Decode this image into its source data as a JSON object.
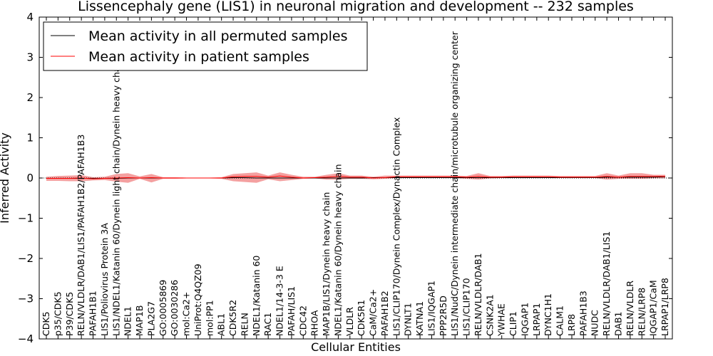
{
  "chart_data": {
    "type": "line",
    "title": "Lissencephaly gene (LIS1) in neuronal migration and development -- 232 samples",
    "xlabel": "Cellular Entities",
    "ylabel": "Inferred Activity",
    "ylim": [
      -4,
      4
    ],
    "yticks": [
      -4,
      -3,
      -2,
      -1,
      0,
      1,
      2,
      3,
      4
    ],
    "ytick_labels": [
      "−4",
      "−3",
      "−2",
      "−1",
      "0",
      "1",
      "2",
      "3",
      "4"
    ],
    "legend_position": "top-left",
    "categories": [
      "CDK5",
      "p35/CDK5",
      "P39/CDK5",
      "RELN/VLDLR/DAB1/LIS1/PAFAH1B2/PAFAH1B3",
      "PAFAH1B1",
      "LIS1/Poliovirus Protein 3A",
      "LIS1/NDEL1/Katanin 60/Dynein light chain/Dynein heavy chain",
      "NDEL1",
      "MAP1B",
      "PLA2G7",
      "GO:0005869",
      "GO:0030286",
      "mol:Ca2+",
      "UniProt:Q4QZ09",
      "mol:PP1",
      "ABL1",
      "CDK5R2",
      "RELN",
      "NDEL1/Katanin 60",
      "RAC1",
      "NDEL1/14-3-3 E",
      "PAFAH/LIS1",
      "CDC42",
      "RHOA",
      "MAP1B/LIS1/Dynein heavy chain",
      "NDEL1/Katanin 60/Dynein heavy chain",
      "VLDLR",
      "CDK5R1",
      "CaM/Ca2+",
      "PAFAH1B2",
      "LIS1/CLIP170/Dynein Complex/Dynactin Complex",
      "DYNLT1",
      "KATNA1",
      "LIS1/IQGAP1",
      "PPP2R5D",
      "LIS1/NudC/Dynein intermediate chain/microtubule organizing center",
      "LIS1/CLIP170",
      "RELN/VLDLR/DAB1",
      "CSNK2A1",
      "YWHAE",
      "CLIP1",
      "IQGAP1",
      "LRPAP1",
      "DYNC1H1",
      "CALM1",
      "LRP8",
      "PAFAH1B3",
      "NUDC",
      "RELN/VLDLR/DAB1/LIS1",
      "DAB1",
      "RELN/VLDLR",
      "RELN/LRP8",
      "IQGAP1/CaM",
      "LRPAP1/LRP8"
    ],
    "series": [
      {
        "name": "Mean activity in all permuted samples",
        "color": "#000000",
        "values": [
          -0.01,
          -0.01,
          -0.01,
          -0.01,
          -0.01,
          -0.01,
          -0.01,
          0.0,
          0.0,
          0.0,
          0.0,
          0.0,
          0.0,
          0.0,
          0.0,
          0.0,
          0.01,
          0.01,
          0.0,
          0.0,
          0.0,
          0.0,
          0.0,
          0.0,
          0.0,
          0.0,
          0.0,
          0.0,
          0.01,
          0.01,
          0.01,
          0.01,
          0.01,
          0.01,
          0.01,
          0.01,
          0.01,
          0.01,
          0.01,
          0.01,
          0.01,
          0.01,
          0.01,
          0.01,
          0.01,
          0.01,
          0.01,
          0.01,
          0.02,
          0.02,
          0.02,
          0.02,
          0.02,
          0.03
        ],
        "band": [
          [
            -0.01,
            -0.01
          ],
          [
            -0.01,
            -0.01
          ],
          [
            -0.01,
            -0.01
          ],
          [
            -0.01,
            -0.01
          ],
          [
            -0.01,
            -0.01
          ],
          [
            -0.01,
            -0.01
          ],
          [
            -0.01,
            -0.01
          ],
          [
            -0.01,
            0.01
          ],
          [
            -0.01,
            0.01
          ],
          [
            -0.01,
            0.01
          ],
          [
            -0.01,
            0.01
          ],
          [
            -0.01,
            0.01
          ],
          [
            -0.01,
            0.01
          ],
          [
            -0.01,
            0.01
          ],
          [
            -0.01,
            0.01
          ],
          [
            -0.01,
            0.01
          ],
          [
            0.0,
            0.02
          ],
          [
            0.0,
            0.02
          ],
          [
            -0.01,
            0.01
          ],
          [
            -0.01,
            0.01
          ],
          [
            -0.01,
            0.01
          ],
          [
            -0.01,
            0.01
          ],
          [
            -0.01,
            0.01
          ],
          [
            -0.01,
            0.01
          ],
          [
            -0.01,
            0.01
          ],
          [
            -0.01,
            0.01
          ],
          [
            -0.01,
            0.01
          ],
          [
            -0.01,
            0.01
          ],
          [
            0.0,
            0.02
          ],
          [
            0.0,
            0.02
          ],
          [
            0.0,
            0.02
          ],
          [
            0.0,
            0.02
          ],
          [
            0.0,
            0.02
          ],
          [
            0.0,
            0.02
          ],
          [
            0.0,
            0.02
          ],
          [
            0.0,
            0.02
          ],
          [
            0.0,
            0.02
          ],
          [
            0.0,
            0.02
          ],
          [
            0.0,
            0.02
          ],
          [
            0.0,
            0.02
          ],
          [
            0.0,
            0.02
          ],
          [
            0.0,
            0.02
          ],
          [
            0.0,
            0.02
          ],
          [
            0.0,
            0.02
          ],
          [
            0.0,
            0.02
          ],
          [
            0.0,
            0.02
          ],
          [
            0.0,
            0.02
          ],
          [
            0.0,
            0.02
          ],
          [
            0.01,
            0.03
          ],
          [
            0.01,
            0.03
          ],
          [
            0.01,
            0.03
          ],
          [
            0.01,
            0.03
          ],
          [
            0.01,
            0.03
          ],
          [
            0.02,
            0.04
          ]
        ]
      },
      {
        "name": "Mean activity in patient samples",
        "color": "#ff0000",
        "fill": "#f08080",
        "values": [
          -0.01,
          -0.01,
          -0.01,
          0.0,
          -0.02,
          -0.01,
          0.0,
          0.01,
          0.0,
          0.01,
          0.0,
          0.0,
          0.0,
          0.0,
          0.0,
          0.0,
          0.03,
          0.04,
          0.04,
          0.02,
          0.05,
          0.02,
          0.0,
          0.01,
          0.02,
          0.04,
          0.02,
          0.02,
          0.0,
          0.01,
          0.03,
          0.03,
          0.03,
          0.03,
          0.03,
          0.03,
          0.02,
          0.04,
          0.02,
          0.02,
          0.03,
          0.03,
          0.03,
          0.03,
          0.02,
          0.02,
          0.02,
          0.02,
          0.04,
          0.02,
          0.04,
          0.04,
          0.04,
          0.04
        ],
        "band": [
          [
            -0.07,
            0.03
          ],
          [
            -0.07,
            0.05
          ],
          [
            -0.08,
            0.06
          ],
          [
            -0.08,
            0.07
          ],
          [
            -0.06,
            0.02
          ],
          [
            -0.05,
            0.03
          ],
          [
            -0.09,
            0.1
          ],
          [
            -0.12,
            0.12
          ],
          [
            -0.02,
            0.04
          ],
          [
            -0.11,
            0.1
          ],
          [
            -0.02,
            0.02
          ],
          [
            -0.02,
            0.02
          ],
          [
            -0.01,
            0.01
          ],
          [
            -0.01,
            0.01
          ],
          [
            -0.01,
            0.01
          ],
          [
            -0.02,
            0.02
          ],
          [
            -0.08,
            0.1
          ],
          [
            -0.1,
            0.12
          ],
          [
            -0.12,
            0.14
          ],
          [
            -0.03,
            0.06
          ],
          [
            -0.08,
            0.14
          ],
          [
            -0.05,
            0.08
          ],
          [
            -0.02,
            0.03
          ],
          [
            -0.01,
            0.03
          ],
          [
            -0.04,
            0.08
          ],
          [
            -0.04,
            0.12
          ],
          [
            -0.02,
            0.06
          ],
          [
            -0.02,
            0.06
          ],
          [
            -0.03,
            0.03
          ],
          [
            -0.02,
            0.06
          ],
          [
            0.0,
            0.06
          ],
          [
            0.0,
            0.06
          ],
          [
            0.0,
            0.06
          ],
          [
            0.0,
            0.06
          ],
          [
            0.0,
            0.06
          ],
          [
            0.0,
            0.06
          ],
          [
            -0.02,
            0.05
          ],
          [
            -0.04,
            0.12
          ],
          [
            -0.01,
            0.05
          ],
          [
            0.0,
            0.05
          ],
          [
            0.0,
            0.06
          ],
          [
            0.0,
            0.06
          ],
          [
            0.0,
            0.06
          ],
          [
            0.0,
            0.06
          ],
          [
            0.0,
            0.05
          ],
          [
            0.0,
            0.05
          ],
          [
            0.0,
            0.05
          ],
          [
            0.0,
            0.05
          ],
          [
            -0.04,
            0.12
          ],
          [
            -0.02,
            0.06
          ],
          [
            -0.02,
            0.12
          ],
          [
            -0.02,
            0.12
          ],
          [
            -0.01,
            0.08
          ],
          [
            -0.01,
            0.08
          ]
        ]
      }
    ]
  }
}
